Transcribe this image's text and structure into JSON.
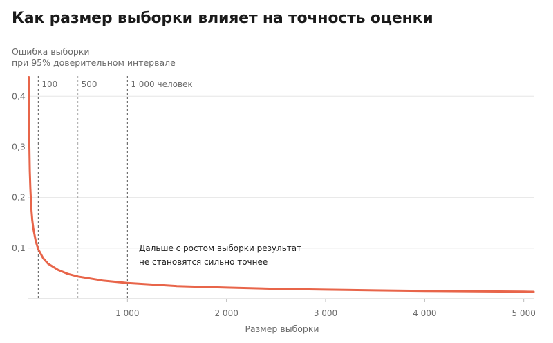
{
  "title": "Как размер выборки влияет на точность оценки",
  "ylabel_line1": "Ошибка выборки",
  "ylabel_line2": "при 95% доверительном интервале",
  "annotation_line1": "Дальше с ростом выборки результат",
  "annotation_line2": "не становятся сильно точнее",
  "colors": {
    "line": "#e8654a",
    "grid": "#e6e6e6",
    "ref_dark": "#555555",
    "ref_light": "#a8a8a8",
    "text": "#6b6b6b"
  },
  "chart_data": {
    "type": "line",
    "title": "Как размер выборки влияет на точность оценки",
    "xlabel": "Размер выборки",
    "ylabel": "Ошибка выборки при 95% доверительном интервале",
    "xlim": [
      0,
      5100
    ],
    "ylim": [
      0,
      0.44
    ],
    "x_ticks": [
      1000,
      2000,
      3000,
      4000,
      5000
    ],
    "x_tick_labels": [
      "1 000",
      "2 000",
      "3 000",
      "4 000",
      "5 000"
    ],
    "y_ticks": [
      0.1,
      0.2,
      0.3,
      0.4
    ],
    "y_tick_labels": [
      "0,1",
      "0,2",
      "0,3",
      "0,4"
    ],
    "grid": "horizontal",
    "series": [
      {
        "x": [
          5,
          10,
          15,
          20,
          30,
          40,
          50,
          75,
          100,
          150,
          200,
          300,
          400,
          500,
          750,
          1000,
          1500,
          2000,
          2500,
          3000,
          3500,
          4000,
          4500,
          5000,
          5100
        ],
        "y": [
          0.438,
          0.31,
          0.253,
          0.219,
          0.179,
          0.155,
          0.139,
          0.113,
          0.098,
          0.08,
          0.069,
          0.057,
          0.049,
          0.044,
          0.036,
          0.031,
          0.025,
          0.022,
          0.0196,
          0.0179,
          0.0166,
          0.0155,
          0.0146,
          0.0139,
          0.0137
        ]
      }
    ],
    "reference_lines": [
      {
        "x": 100,
        "label": "100",
        "style": "dark"
      },
      {
        "x": 500,
        "label": "500",
        "style": "light"
      },
      {
        "x": 1000,
        "label": "1 000 человек",
        "style": "dark"
      }
    ]
  }
}
